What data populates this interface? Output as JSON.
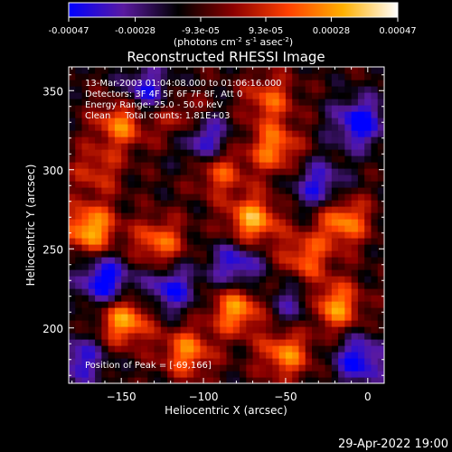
{
  "colorbar": {
    "ticks": [
      "-0.00047",
      "-0.00028",
      "-9.3e-05",
      "9.3e-05",
      "0.00028",
      "0.00047"
    ],
    "tick_values": [
      -0.00047,
      -0.00028,
      -9.3e-05,
      9.3e-05,
      0.00028,
      0.00047
    ],
    "range": [
      -0.00047,
      0.00047
    ],
    "unit_parts": [
      "(photons cm",
      "-2",
      " s",
      "-1",
      " asec",
      "-2",
      ")"
    ],
    "colors": [
      "#0000ff",
      "#5a1aa0",
      "#000000",
      "#8b0000",
      "#ff4000",
      "#ffb000",
      "#ffffff"
    ]
  },
  "chart_data": {
    "type": "heatmap",
    "title": "Reconstructed RHESSI Image",
    "xlabel": "Heliocentric X (arcsec)",
    "ylabel": "Heliocentric Y (arcsec)",
    "xlim": [
      -182,
      10
    ],
    "ylim": [
      165,
      365
    ],
    "x_ticks": [
      -150,
      -100,
      -50,
      0
    ],
    "x_tick_labels": [
      "−150",
      "−100",
      "−50",
      "0"
    ],
    "y_ticks": [
      200,
      250,
      300,
      350
    ],
    "y_tick_labels": [
      "200",
      "250",
      "300",
      "350"
    ],
    "grid": false,
    "legend": "none",
    "annotations": [
      "13-Mar-2003 01:04:08.000 to 01:06:16.000",
      "Detectors: 3F 4F 5F 6F 7F 8F, Att 0",
      "Energy Range: 25.0 - 50.0 keV",
      "Clean     Total counts: 1.81E+03"
    ],
    "peak_label": "Position of Peak = [-69,166]",
    "peak_position": [
      -69,
      166
    ],
    "blobs": [
      {
        "x": -169,
        "y": 263,
        "v": 0.00045
      },
      {
        "x": -150,
        "y": 330,
        "v": 0.00036
      },
      {
        "x": -148,
        "y": 205,
        "v": 0.00042
      },
      {
        "x": -127,
        "y": 254,
        "v": 0.00033
      },
      {
        "x": -113,
        "y": 332,
        "v": 0.00024
      },
      {
        "x": -90,
        "y": 299,
        "v": 0.00028
      },
      {
        "x": -70,
        "y": 268,
        "v": 0.00043
      },
      {
        "x": -57,
        "y": 314,
        "v": 0.00035
      },
      {
        "x": -80,
        "y": 212,
        "v": 0.0004
      },
      {
        "x": -38,
        "y": 245,
        "v": 0.0003
      },
      {
        "x": -15,
        "y": 268,
        "v": 0.00038
      },
      {
        "x": -20,
        "y": 214,
        "v": 0.0004
      },
      {
        "x": -50,
        "y": 184,
        "v": 0.00036
      },
      {
        "x": -165,
        "y": 300,
        "v": 0.00022
      },
      {
        "x": -60,
        "y": 345,
        "v": 0.00028
      },
      {
        "x": -110,
        "y": 185,
        "v": 0.00035
      },
      {
        "x": -135,
        "y": 350,
        "v": -0.0003
      },
      {
        "x": -100,
        "y": 320,
        "v": -0.00035
      },
      {
        "x": -160,
        "y": 230,
        "v": -0.0004
      },
      {
        "x": -120,
        "y": 225,
        "v": -0.00032
      },
      {
        "x": -5,
        "y": 330,
        "v": -0.00038
      },
      {
        "x": -30,
        "y": 290,
        "v": -0.0003
      },
      {
        "x": -5,
        "y": 180,
        "v": -0.00035
      },
      {
        "x": -80,
        "y": 240,
        "v": -0.00032
      },
      {
        "x": -175,
        "y": 180,
        "v": -0.00028
      },
      {
        "x": -45,
        "y": 215,
        "v": -0.0002
      }
    ]
  },
  "footer": {
    "timestamp": "29-Apr-2022 19:00"
  }
}
